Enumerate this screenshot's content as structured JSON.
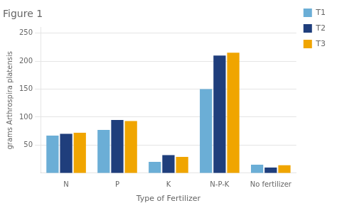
{
  "chart_data": {
    "type": "bar",
    "title": "Figure 1",
    "xlabel": "Type of Fertilizer",
    "ylabel": "grams Arthrospira platensis",
    "categories": [
      "N",
      "P",
      "K",
      "N-P-K",
      "No fertilizer"
    ],
    "series": [
      {
        "name": "T1",
        "color": "#6BAED6",
        "values": [
          67,
          77,
          20,
          150,
          15
        ]
      },
      {
        "name": "T2",
        "color": "#1F3E7C",
        "values": [
          70,
          95,
          32,
          210,
          10
        ]
      },
      {
        "name": "T3",
        "color": "#F0A500",
        "values": [
          72,
          93,
          29,
          215,
          14
        ]
      }
    ],
    "ylim": [
      0,
      260
    ],
    "yticks": [
      50,
      100,
      150,
      200,
      250
    ],
    "grid": true,
    "legend": "right"
  }
}
